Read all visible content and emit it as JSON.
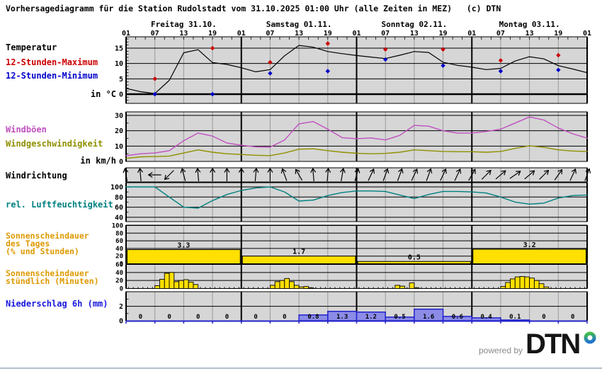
{
  "title": "Vorhersagediagramm für die Station Rudolstadt vom 31.10.2025 01:00 Uhr (alle Zeiten in MEZ)   (c) DTN",
  "left_labels": {
    "temperature": "Temperatur",
    "max12h": "12-Stunden-Maximum",
    "min12h": "12-Stunden-Minimum",
    "temp_unit": "in °C",
    "gusts": "Windböen",
    "wind_speed": "Windgeschwindigkeit",
    "wind_unit": "in km/h",
    "wind_direction": "Windrichtung",
    "humidity": "rel. Luftfeuchtigkeit",
    "sun_daily_1": "Sonnenscheindauer",
    "sun_daily_2": "des Tages",
    "sun_daily_3": "(% und Stunden)",
    "sun_hourly_1": "Sonnenscheindauer",
    "sun_hourly_2": "stündlich (Minuten)",
    "precipitation": "Niederschlag 6h (mm)"
  },
  "footer": {
    "powered_by": "powered by",
    "brand": "DTN"
  },
  "colors": {
    "plot_bg": "#d6d6d6",
    "grid_minor": "#9a9a9a",
    "grid_major": "#000000",
    "temperature": "#000000",
    "max_dot": "#cc0000",
    "min_dot": "#0000cc",
    "gusts": "#c050c0",
    "wind_speed": "#909000",
    "humidity": "#008080",
    "sunshine_fill": "#ffe000",
    "sunshine_label_color": "#dd9900",
    "precip_fill": "#8c8ce8",
    "precip_border": "#2222cc",
    "label_red": "#cc0000",
    "label_blue": "#0000cc",
    "footer_line": "#b4c0cc",
    "ring_green": "#44c144",
    "ring_blue": "#2277cc"
  },
  "chart_data": {
    "type": "meteogram",
    "sample_step_hours": 3,
    "x_axis": {
      "day_labels": [
        "Freitag 31.10.",
        "Samstag 01.11.",
        "Sonntag 02.11.",
        "Montag 03.11."
      ],
      "hour_tick_labels": [
        "01",
        "07",
        "13",
        "19"
      ],
      "final_hour_label": "01"
    },
    "temperature": {
      "unit": "in °C",
      "ticks": [
        0,
        5,
        10,
        15
      ],
      "series": [
        1.9,
        0.8,
        0.2,
        4.5,
        13.5,
        14.5,
        10.3,
        9.7,
        8.6,
        7.3,
        8.0,
        12.5,
        15.9,
        15.3,
        13.9,
        13.2,
        12.6,
        12.1,
        11.6,
        12.7,
        13.9,
        13.6,
        10.4,
        9.4,
        8.8,
        8.0,
        8.4,
        10.8,
        12.2,
        11.5,
        9.3,
        8.2,
        7.0
      ],
      "max_dots": [
        [
          7,
          5.0
        ],
        [
          19,
          15.0
        ],
        [
          31,
          10.4
        ],
        [
          43,
          16.5
        ],
        [
          55,
          14.6
        ],
        [
          67,
          14.6
        ],
        [
          79,
          11.0
        ],
        [
          91,
          12.7
        ]
      ],
      "min_dots": [
        [
          7,
          0.0
        ],
        [
          19,
          0.0
        ],
        [
          31,
          6.8
        ],
        [
          43,
          7.5
        ],
        [
          55,
          11.3
        ],
        [
          67,
          9.3
        ],
        [
          79,
          7.5
        ],
        [
          91,
          7.9
        ]
      ]
    },
    "wind": {
      "unit": "in km/h",
      "ticks": [
        0,
        10,
        20,
        30
      ],
      "gusts": [
        3.7,
        5.0,
        5.5,
        7.0,
        13.5,
        18.5,
        16.5,
        12.0,
        10.5,
        9.5,
        9.3,
        14.0,
        24.5,
        26.0,
        21.0,
        15.5,
        14.8,
        15.3,
        14.0,
        17.0,
        23.5,
        23.0,
        20.0,
        18.5,
        18.5,
        19.5,
        21.0,
        25.0,
        29.0,
        27.0,
        21.8,
        18.0,
        15.2
      ],
      "speed": [
        2.0,
        3.0,
        3.2,
        3.5,
        5.5,
        7.5,
        6.0,
        5.0,
        4.5,
        4.0,
        3.8,
        5.5,
        8.0,
        8.2,
        7.0,
        6.0,
        5.3,
        5.0,
        5.2,
        6.0,
        7.5,
        7.0,
        6.5,
        6.3,
        6.3,
        6.0,
        6.5,
        8.5,
        10.2,
        9.2,
        7.5,
        6.8,
        6.5
      ]
    },
    "wind_direction_deg": [
      -10,
      -5,
      -90,
      -135,
      -15,
      -5,
      0,
      0,
      0,
      5,
      0,
      -20,
      -30,
      -5,
      5,
      10,
      15,
      25,
      20,
      20,
      25,
      20,
      25,
      25,
      30,
      45,
      50,
      55,
      50,
      45,
      35,
      25,
      20
    ],
    "humidity": {
      "ticks": [
        40,
        60,
        80,
        100
      ],
      "series": [
        100,
        100,
        100,
        80,
        60,
        58,
        73,
        85,
        93,
        98,
        100,
        90,
        72,
        74,
        83,
        89,
        92,
        92,
        91,
        84,
        77,
        85,
        91,
        91,
        90,
        88,
        80,
        70,
        66,
        68,
        78,
        83,
        84
      ]
    },
    "sunshine_daily": {
      "ticks": [
        0,
        20,
        40,
        60,
        80,
        100
      ],
      "bars": [
        {
          "hours_label": "3.3",
          "percent": 37
        },
        {
          "hours_label": "1.7",
          "percent": 20
        },
        {
          "hours_label": "0.5",
          "percent": 6
        },
        {
          "hours_label": "3.2",
          "percent": 38
        }
      ]
    },
    "sunshine_hourly": {
      "ticks": [
        0,
        20,
        40,
        60
      ],
      "bars": [
        [
          7,
          7
        ],
        [
          8,
          23
        ],
        [
          9,
          38
        ],
        [
          10,
          40
        ],
        [
          11,
          17
        ],
        [
          12,
          20
        ],
        [
          13,
          22
        ],
        [
          14,
          16
        ],
        [
          15,
          10
        ],
        [
          31,
          8
        ],
        [
          32,
          17
        ],
        [
          33,
          20
        ],
        [
          34,
          25
        ],
        [
          35,
          17
        ],
        [
          36,
          8
        ],
        [
          37,
          4
        ],
        [
          38,
          5
        ],
        [
          39,
          2
        ],
        [
          57,
          8
        ],
        [
          58,
          6
        ],
        [
          60,
          14
        ],
        [
          61,
          2
        ],
        [
          79,
          5
        ],
        [
          80,
          15
        ],
        [
          81,
          24
        ],
        [
          82,
          29
        ],
        [
          83,
          30
        ],
        [
          84,
          29
        ],
        [
          85,
          26
        ],
        [
          86,
          20
        ],
        [
          87,
          12
        ],
        [
          88,
          4
        ]
      ]
    },
    "precipitation": {
      "ticks": [
        0,
        2
      ],
      "values_6h": [
        0,
        0,
        0,
        0,
        0,
        0,
        0.8,
        1.3,
        1.2,
        0.5,
        1.6,
        0.6,
        0.4,
        0.1,
        0,
        0
      ],
      "value_labels": [
        "0",
        "0",
        "0",
        "0",
        "0",
        "0",
        "0.8",
        "1.3",
        "1.2",
        "0.5",
        "1.6",
        "0.6",
        "0.4",
        "0.1",
        "0",
        "0"
      ]
    }
  }
}
